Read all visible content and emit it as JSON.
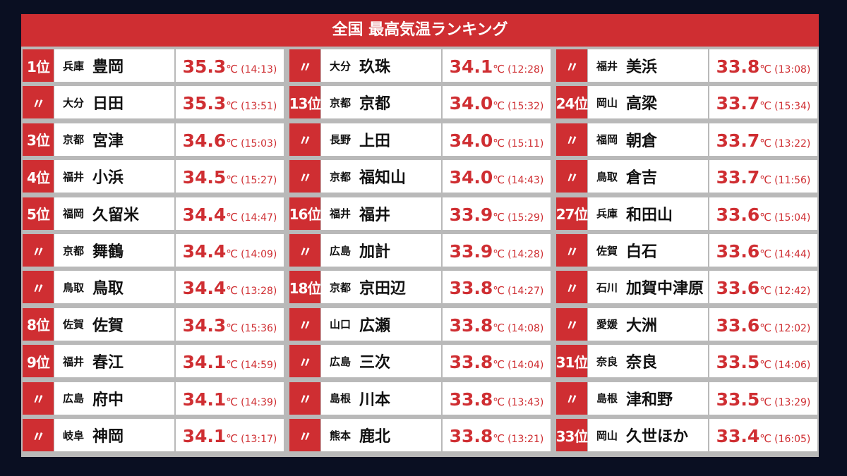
{
  "header": {
    "title": "全国 最高気温ランキング"
  },
  "unit": "℃",
  "columns": [
    [
      {
        "rank": "1位",
        "pref": "兵庫",
        "city": "豊岡",
        "temp": "35.3",
        "time": "(14:13)"
      },
      {
        "rank": "〃",
        "pref": "大分",
        "city": "日田",
        "temp": "35.3",
        "time": "(13:51)"
      },
      {
        "rank": "3位",
        "pref": "京都",
        "city": "宮津",
        "temp": "34.6",
        "time": "(15:03)"
      },
      {
        "rank": "4位",
        "pref": "福井",
        "city": "小浜",
        "temp": "34.5",
        "time": "(15:27)"
      },
      {
        "rank": "5位",
        "pref": "福岡",
        "city": "久留米",
        "temp": "34.4",
        "time": "(14:47)"
      },
      {
        "rank": "〃",
        "pref": "京都",
        "city": "舞鶴",
        "temp": "34.4",
        "time": "(14:09)"
      },
      {
        "rank": "〃",
        "pref": "鳥取",
        "city": "鳥取",
        "temp": "34.4",
        "time": "(13:28)"
      },
      {
        "rank": "8位",
        "pref": "佐賀",
        "city": "佐賀",
        "temp": "34.3",
        "time": "(15:36)"
      },
      {
        "rank": "9位",
        "pref": "福井",
        "city": "春江",
        "temp": "34.1",
        "time": "(14:59)"
      },
      {
        "rank": "〃",
        "pref": "広島",
        "city": "府中",
        "temp": "34.1",
        "time": "(14:39)"
      },
      {
        "rank": "〃",
        "pref": "岐阜",
        "city": "神岡",
        "temp": "34.1",
        "time": "(13:17)"
      }
    ],
    [
      {
        "rank": "〃",
        "pref": "大分",
        "city": "玖珠",
        "temp": "34.1",
        "time": "(12:28)"
      },
      {
        "rank": "13位",
        "pref": "京都",
        "city": "京都",
        "temp": "34.0",
        "time": "(15:32)"
      },
      {
        "rank": "〃",
        "pref": "長野",
        "city": "上田",
        "temp": "34.0",
        "time": "(15:11)"
      },
      {
        "rank": "〃",
        "pref": "京都",
        "city": "福知山",
        "temp": "34.0",
        "time": "(14:43)"
      },
      {
        "rank": "16位",
        "pref": "福井",
        "city": "福井",
        "temp": "33.9",
        "time": "(15:29)"
      },
      {
        "rank": "〃",
        "pref": "広島",
        "city": "加計",
        "temp": "33.9",
        "time": "(14:28)"
      },
      {
        "rank": "18位",
        "pref": "京都",
        "city": "京田辺",
        "temp": "33.8",
        "time": "(14:27)"
      },
      {
        "rank": "〃",
        "pref": "山口",
        "city": "広瀬",
        "temp": "33.8",
        "time": "(14:08)"
      },
      {
        "rank": "〃",
        "pref": "広島",
        "city": "三次",
        "temp": "33.8",
        "time": "(14:04)"
      },
      {
        "rank": "〃",
        "pref": "島根",
        "city": "川本",
        "temp": "33.8",
        "time": "(13:43)"
      },
      {
        "rank": "〃",
        "pref": "熊本",
        "city": "鹿北",
        "temp": "33.8",
        "time": "(13:21)"
      }
    ],
    [
      {
        "rank": "〃",
        "pref": "福井",
        "city": "美浜",
        "temp": "33.8",
        "time": "(13:08)"
      },
      {
        "rank": "24位",
        "pref": "岡山",
        "city": "高梁",
        "temp": "33.7",
        "time": "(15:34)"
      },
      {
        "rank": "〃",
        "pref": "福岡",
        "city": "朝倉",
        "temp": "33.7",
        "time": "(13:22)"
      },
      {
        "rank": "〃",
        "pref": "鳥取",
        "city": "倉吉",
        "temp": "33.7",
        "time": "(11:56)"
      },
      {
        "rank": "27位",
        "pref": "兵庫",
        "city": "和田山",
        "temp": "33.6",
        "time": "(15:04)"
      },
      {
        "rank": "〃",
        "pref": "佐賀",
        "city": "白石",
        "temp": "33.6",
        "time": "(14:44)"
      },
      {
        "rank": "〃",
        "pref": "石川",
        "city": "加賀中津原",
        "temp": "33.6",
        "time": "(12:42)"
      },
      {
        "rank": "〃",
        "pref": "愛媛",
        "city": "大洲",
        "temp": "33.6",
        "time": "(12:02)"
      },
      {
        "rank": "31位",
        "pref": "奈良",
        "city": "奈良",
        "temp": "33.5",
        "time": "(14:06)"
      },
      {
        "rank": "〃",
        "pref": "島根",
        "city": "津和野",
        "temp": "33.5",
        "time": "(13:29)"
      },
      {
        "rank": "33位",
        "pref": "岡山",
        "city": "久世ほか",
        "temp": "33.4",
        "time": "(16:05)"
      }
    ]
  ]
}
